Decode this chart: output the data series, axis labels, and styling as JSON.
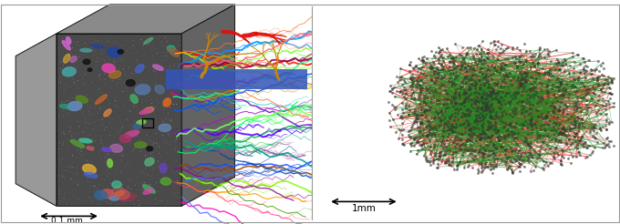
{
  "fig_width": 6.8,
  "fig_height": 2.46,
  "dpi": 100,
  "bg_color": "#ffffff",
  "left_panel": {
    "scale_bar_label": "0.1 mm"
  },
  "right_panel": {
    "scale_bar_label": "1mm",
    "n_dots": 1800,
    "n_red_lines": 600,
    "n_green_lines": 700,
    "seed": 7
  }
}
